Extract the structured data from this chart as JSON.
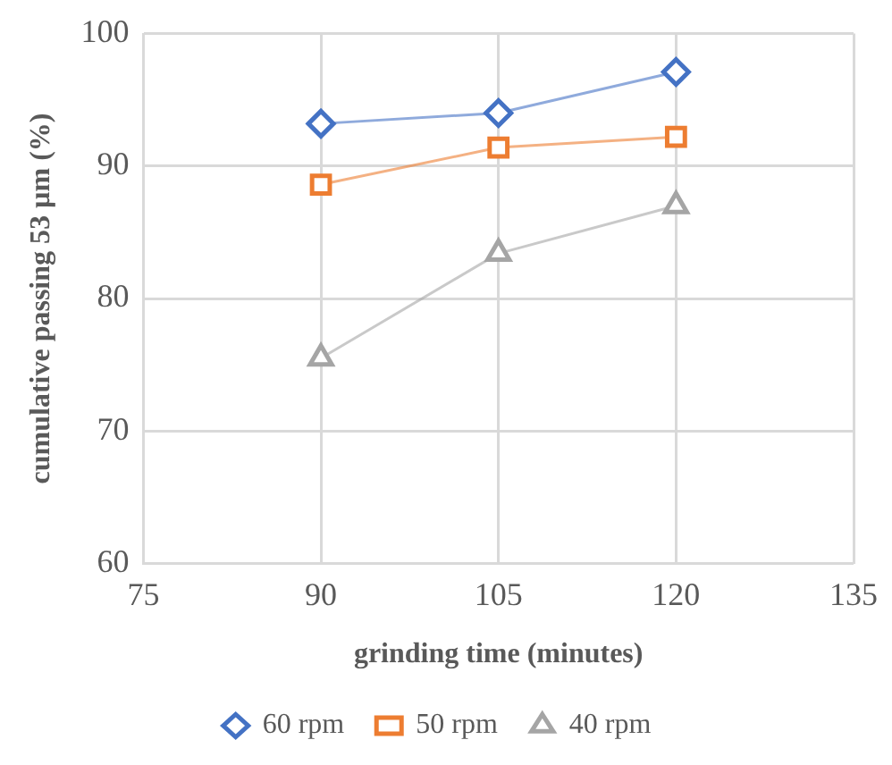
{
  "chart_data": {
    "type": "line",
    "xlabel": "grinding time (minutes)",
    "ylabel": "cumulative passing 53 µm (%)",
    "x": [
      90,
      105,
      120
    ],
    "series": [
      {
        "name": "60 rpm",
        "color": "#4472c4",
        "marker": "diamond",
        "values": [
          93.2,
          94.0,
          97.1
        ]
      },
      {
        "name": "50 rpm",
        "color": "#ed7d31",
        "marker": "square",
        "values": [
          88.6,
          91.4,
          92.2
        ]
      },
      {
        "name": "40 rpm",
        "color": "#a5a5a5",
        "marker": "triangle",
        "values": [
          75.5,
          83.4,
          87.0
        ]
      }
    ],
    "xlim": [
      75,
      135
    ],
    "xticks": [
      75,
      90,
      105,
      120,
      135
    ],
    "ylim": [
      60,
      100
    ],
    "yticks": [
      60,
      70,
      80,
      90,
      100
    ],
    "grid": true,
    "legend": "bottom",
    "line_style": "solid"
  }
}
